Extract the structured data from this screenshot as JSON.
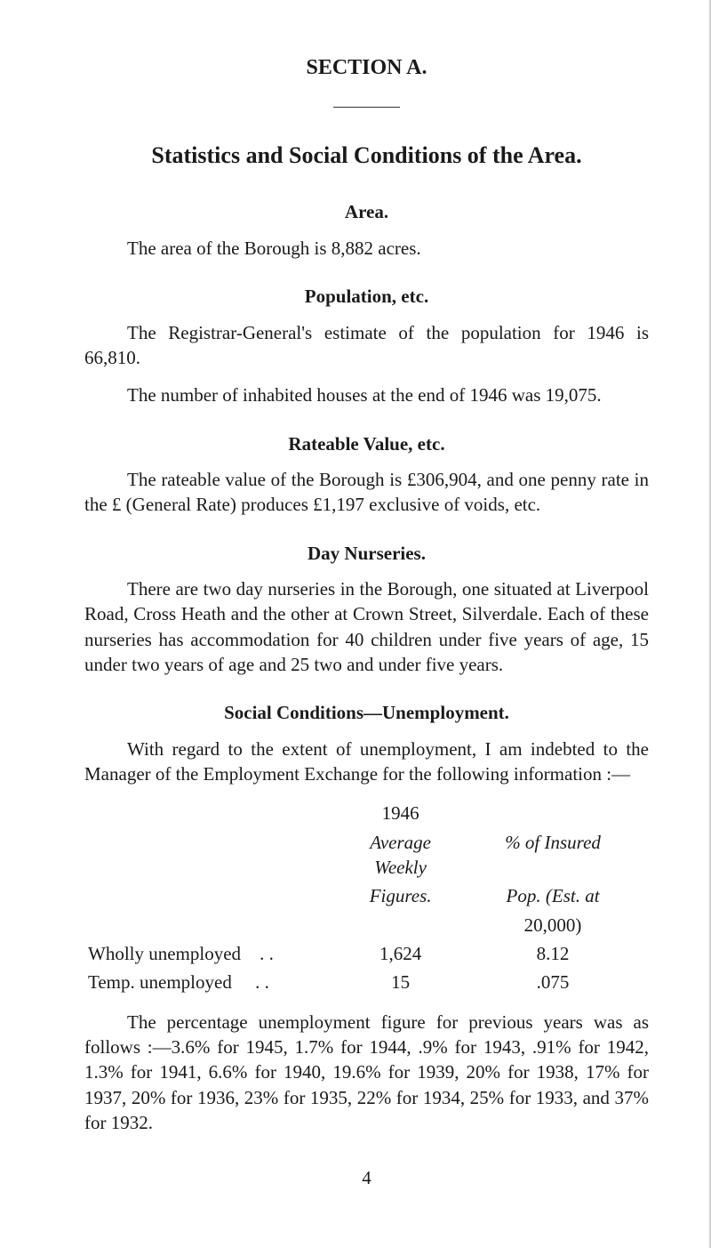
{
  "section_label": "SECTION A.",
  "main_title": "Statistics and Social Conditions of the Area.",
  "area": {
    "heading": "Area.",
    "text": "The area of the Borough is 8,882 acres."
  },
  "population": {
    "heading": "Population, etc.",
    "p1": "The Registrar-General's estimate of the population for 1946 is 66,810.",
    "p2": "The number of inhabited houses at the end of 1946 was 19,075."
  },
  "rateable": {
    "heading": "Rateable Value, etc.",
    "text": "The rateable value of the Borough is £306,904, and one penny rate in the £ (General Rate) produces £1,197 exclusive of voids, etc."
  },
  "nurseries": {
    "heading": "Day Nurseries.",
    "text": "There are two day nurseries in the Borough, one situated at Liverpool Road, Cross Heath and the other at Crown Street, Silverdale. Each of these nurseries has accommodation for 40 children under five years of age, 15 under two years of age and 25 two and under five years."
  },
  "unemployment": {
    "heading": "Social Conditions—Unemployment.",
    "intro": "With regard to the extent of unemployment, I am indebted to the Manager of the Employment Exchange for the following information :—",
    "table": {
      "year": "1946",
      "col_fig_1": "Average Weekly",
      "col_fig_2": "Figures.",
      "col_pct_1": "% of Insured",
      "col_pct_2": "Pop. (Est. at",
      "col_pct_3": "20,000)",
      "rows": [
        {
          "label": "Wholly unemployed",
          "dots": ". .",
          "fig": "1,624",
          "pct": "8.12"
        },
        {
          "label": "Temp. unemployed",
          "dots": ". .",
          "fig": "15",
          "pct": ".075"
        }
      ]
    },
    "prev": "The percentage unemployment figure for previous years was as follows :—3.6% for 1945, 1.7% for 1944, .9% for 1943, .91% for 1942, 1.3% for 1941, 6.6% for 1940, 19.6% for 1939, 20% for 1938, 17% for 1937, 20% for 1936, 23% for 1935, 22% for 1934, 25% for 1933, and 37% for 1932."
  },
  "page_number": "4"
}
